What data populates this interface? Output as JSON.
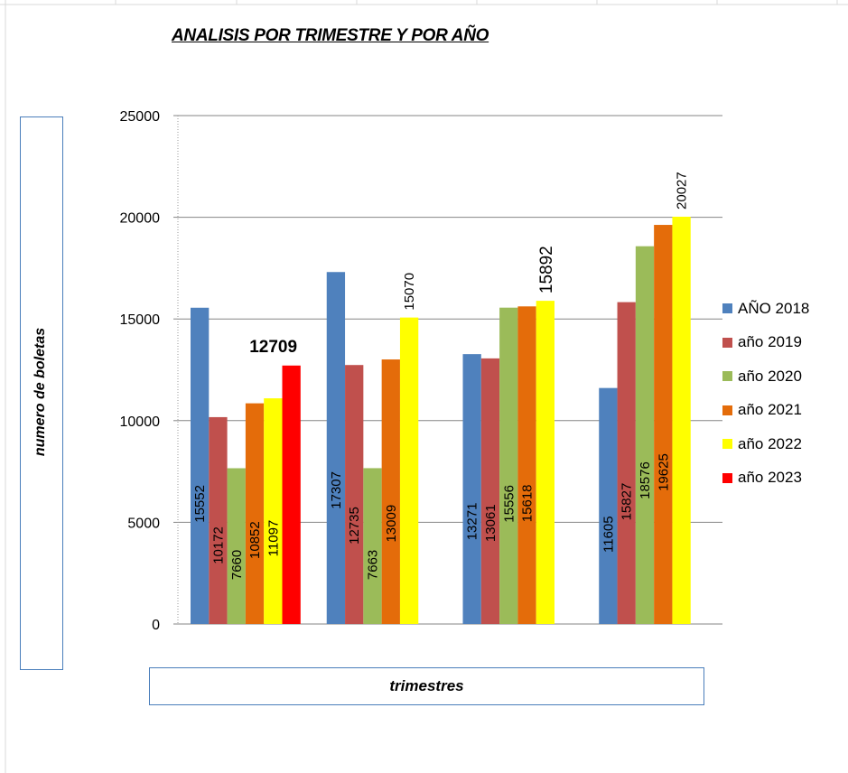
{
  "chart_data": {
    "type": "bar",
    "title": "ANALISIS POR TRIMESTRE Y POR AÑO",
    "xlabel": "trimestres",
    "ylabel": "numero de boletas",
    "ylim": [
      0,
      25000
    ],
    "yticks": [
      0,
      5000,
      10000,
      15000,
      20000,
      25000
    ],
    "grid": true,
    "legend_position": "right",
    "categories": [
      "",
      "",
      "",
      ""
    ],
    "series": [
      {
        "name": "AÑO 2018",
        "color": "#4f81bd",
        "values": [
          15552,
          17307,
          13271,
          11605
        ]
      },
      {
        "name": "año 2019",
        "color": "#c0504d",
        "values": [
          10172,
          12735,
          13061,
          15827
        ]
      },
      {
        "name": "año 2020",
        "color": "#9bbb59",
        "values": [
          7660,
          7663,
          15556,
          18576
        ]
      },
      {
        "name": "año 2021",
        "color": "#e46c0a",
        "values": [
          10852,
          13009,
          15618,
          19625
        ]
      },
      {
        "name": "año 2022",
        "color": "#ffff00",
        "values": [
          11097,
          15070,
          15892,
          20027
        ]
      },
      {
        "name": "año 2023",
        "color": "#ff0000",
        "values": [
          12709,
          null,
          null,
          null
        ]
      }
    ],
    "data_labels": [
      {
        "series": 0,
        "group": 0,
        "text": "15552",
        "placement": "inside",
        "bold": false
      },
      {
        "series": 1,
        "group": 0,
        "text": "10172",
        "placement": "inside",
        "bold": false
      },
      {
        "series": 2,
        "group": 0,
        "text": "7660",
        "placement": "inside",
        "bold": false
      },
      {
        "series": 3,
        "group": 0,
        "text": "10852",
        "placement": "inside",
        "bold": false
      },
      {
        "series": 4,
        "group": 0,
        "text": "11097",
        "placement": "inside",
        "bold": false
      },
      {
        "series": 5,
        "group": 0,
        "text": "12709",
        "placement": "above-horizontal",
        "bold": true
      },
      {
        "series": 0,
        "group": 1,
        "text": "17307",
        "placement": "inside",
        "bold": false
      },
      {
        "series": 1,
        "group": 1,
        "text": "12735",
        "placement": "inside",
        "bold": false
      },
      {
        "series": 2,
        "group": 1,
        "text": "7663",
        "placement": "inside",
        "bold": false
      },
      {
        "series": 3,
        "group": 1,
        "text": "13009",
        "placement": "inside",
        "bold": false
      },
      {
        "series": 4,
        "group": 1,
        "text": "15070",
        "placement": "above",
        "bold": false
      },
      {
        "series": 0,
        "group": 2,
        "text": "13271",
        "placement": "inside",
        "bold": false
      },
      {
        "series": 1,
        "group": 2,
        "text": "13061",
        "placement": "inside",
        "bold": false
      },
      {
        "series": 2,
        "group": 2,
        "text": "15556",
        "placement": "inside",
        "bold": false
      },
      {
        "series": 3,
        "group": 2,
        "text": "15618",
        "placement": "inside",
        "bold": false
      },
      {
        "series": 4,
        "group": 2,
        "text": "15892",
        "placement": "above-large",
        "bold": false
      },
      {
        "series": 0,
        "group": 3,
        "text": "11605",
        "placement": "inside",
        "bold": false
      },
      {
        "series": 1,
        "group": 3,
        "text": "15827",
        "placement": "inside",
        "bold": false
      },
      {
        "series": 2,
        "group": 3,
        "text": "18576",
        "placement": "inside",
        "bold": false
      },
      {
        "series": 3,
        "group": 3,
        "text": "19625",
        "placement": "inside",
        "bold": false
      },
      {
        "series": 4,
        "group": 3,
        "text": "20027",
        "placement": "above",
        "bold": false
      }
    ]
  }
}
